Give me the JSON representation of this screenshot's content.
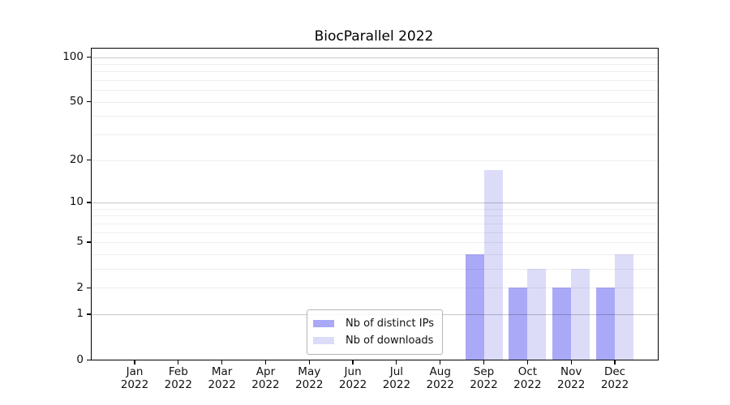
{
  "figure": {
    "background": "#ffffff"
  },
  "chart_data": {
    "type": "bar",
    "title": "BiocParallel 2022",
    "categories": [
      "Jan 2022",
      "Feb 2022",
      "Mar 2022",
      "Apr 2022",
      "May 2022",
      "Jun 2022",
      "Jul 2022",
      "Aug 2022",
      "Sep 2022",
      "Oct 2022",
      "Nov 2022",
      "Dec 2022"
    ],
    "series": [
      {
        "name": "Nb of distinct IPs",
        "color": "#a9a9f7",
        "values": [
          0,
          0,
          0,
          0,
          0,
          0,
          0,
          0,
          4,
          2,
          2,
          2
        ]
      },
      {
        "name": "Nb of downloads",
        "color": "#dcdcf9",
        "values": [
          0,
          0,
          0,
          0,
          0,
          0,
          0,
          0,
          17,
          3,
          3,
          4
        ]
      }
    ],
    "xlabel": "",
    "ylabel": "",
    "yscale": "log1p",
    "ylim": [
      0,
      114
    ],
    "yticks": [
      0,
      1,
      2,
      5,
      10,
      20,
      50,
      100
    ],
    "gridlines": {
      "major": [
        1,
        10,
        100
      ],
      "minor": [
        2,
        3,
        4,
        5,
        6,
        7,
        8,
        9,
        20,
        30,
        40,
        50,
        60,
        70,
        80,
        90
      ]
    },
    "grid_colors": {
      "major": "rgba(0,0,0,0.22)",
      "minor": "rgba(0,0,0,0.065)"
    },
    "legend_position": "lower center",
    "grid_on": true
  }
}
